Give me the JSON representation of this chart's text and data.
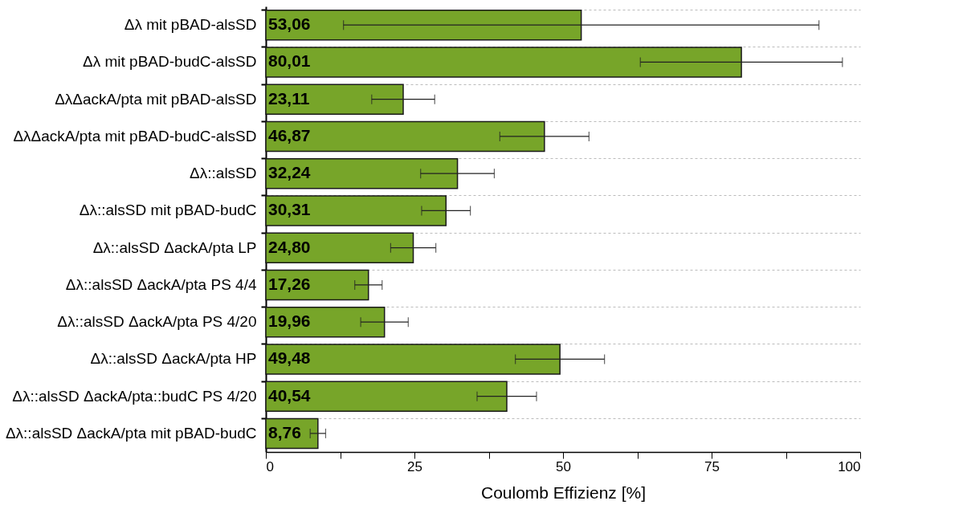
{
  "chart_data": {
    "type": "bar",
    "orientation": "horizontal",
    "xlabel": "Coulomb Effizienz [%]",
    "categories": [
      "Δλ mit pBAD-alsSD",
      "Δλ mit pBAD-budC-alsSD",
      "ΔλΔackA/pta mit pBAD-alsSD",
      "ΔλΔackA/pta mit pBAD-budC-alsSD",
      "Δλ::alsSD",
      "Δλ::alsSD mit pBAD-budC",
      "Δλ::alsSD ΔackA/pta LP",
      "Δλ::alsSD ΔackA/pta PS 4/4",
      "Δλ::alsSD ΔackA/pta PS 4/20",
      "Δλ::alsSD ΔackA/pta HP",
      "Δλ::alsSD ΔackA/pta::budC PS 4/20",
      "Δλ::alsSD ΔackA/pta mit pBAD-budC"
    ],
    "values": [
      53.06,
      80.01,
      23.11,
      46.87,
      32.24,
      30.31,
      24.8,
      17.26,
      19.96,
      49.48,
      40.54,
      8.76
    ],
    "value_labels": [
      "53,06",
      "80,01",
      "23,11",
      "46,87",
      "32,24",
      "30,31",
      "24,80",
      "17,26",
      "19,96",
      "49,48",
      "40,54",
      "8,76"
    ],
    "errors": [
      40,
      17,
      5.3,
      7.5,
      6.2,
      4.1,
      3.8,
      2.3,
      4.0,
      7.5,
      5.0,
      1.3
    ],
    "color": "#77a529",
    "xlim": [
      0,
      100
    ],
    "xticks": [
      0,
      {
        "value": 12.5,
        "label": null
      },
      25,
      {
        "value": 37.5,
        "label": null
      },
      50,
      {
        "value": 62.5,
        "label": null
      },
      75,
      {
        "value": 87.5,
        "label": null
      },
      100
    ],
    "grid": "y"
  }
}
